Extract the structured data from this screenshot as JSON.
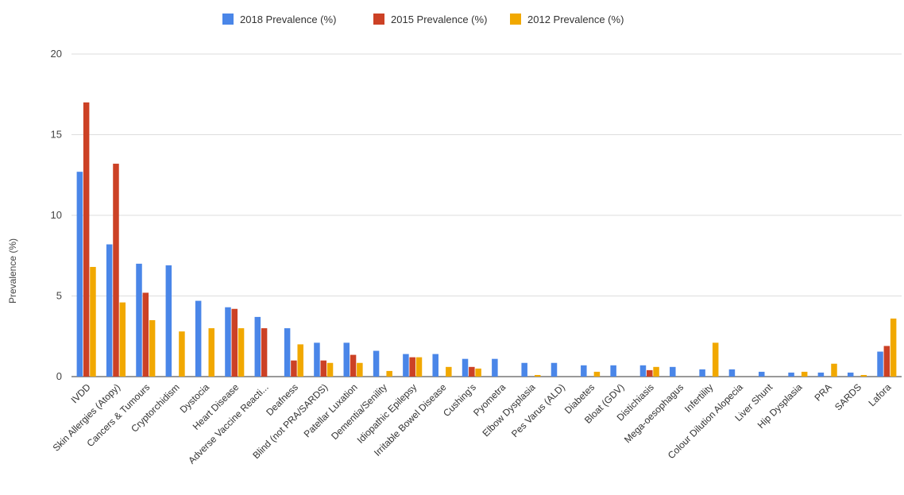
{
  "chart_data": {
    "type": "bar",
    "ylabel": "Prevalence (%)",
    "ylim": [
      0,
      20
    ],
    "yticks": [
      "0",
      "5",
      "10",
      "15",
      "20"
    ],
    "grid": true,
    "legend_position": "top",
    "categories": [
      "IVDD",
      "Skin Allergies (Atopy)",
      "Cancers & Tumours",
      "Cryptorchidism",
      "Dystocia",
      "Heart Disease",
      "Adverse Vaccine Reacti...",
      "Deafness",
      "Blind (not PRA/SARDS)",
      "Patellar Luxation",
      "Dementia/Senility",
      "Idiopathic Epilepsy",
      "Irritable Bowel Disease",
      "Cushing's",
      "Pyometra",
      "Elbow Dysplasia",
      "Pes Varus (ALD)",
      "Diabetes",
      "Bloat (GDV)",
      "Distichiasis",
      "Mega-oesophagus",
      "Infertility",
      "Colour Dilution Alopecia",
      "Liver Shunt",
      "Hip Dysplasia",
      "PRA",
      "SARDS",
      "Lafora"
    ],
    "series": [
      {
        "name": "2018 Prevalence (%)",
        "color": "#4a86e8",
        "values": [
          12.7,
          8.2,
          7.0,
          6.9,
          4.7,
          4.3,
          3.7,
          3.0,
          2.1,
          2.1,
          1.6,
          1.4,
          1.4,
          1.1,
          1.1,
          0.85,
          0.85,
          0.7,
          0.7,
          0.7,
          0.6,
          0.45,
          0.45,
          0.3,
          0.25,
          0.25,
          0.25,
          1.55
        ]
      },
      {
        "name": "2015 Prevalence (%)",
        "color": "#cc4125",
        "values": [
          17.0,
          13.2,
          5.2,
          0,
          0,
          4.2,
          3.0,
          1.0,
          1.0,
          1.35,
          0,
          1.2,
          0,
          0.6,
          0,
          0,
          0,
          0,
          0,
          0.4,
          0,
          0,
          0,
          0,
          0,
          0,
          0,
          1.9
        ]
      },
      {
        "name": "2012 Prevalence (%)",
        "color": "#f1a800",
        "values": [
          6.8,
          4.6,
          3.5,
          2.8,
          3.0,
          3.0,
          0,
          2.0,
          0.85,
          0.85,
          0.35,
          1.2,
          0.6,
          0.5,
          0,
          0.1,
          0,
          0.3,
          0,
          0.6,
          0,
          2.1,
          0,
          0,
          0.3,
          0.8,
          0.1,
          3.6
        ]
      }
    ]
  }
}
